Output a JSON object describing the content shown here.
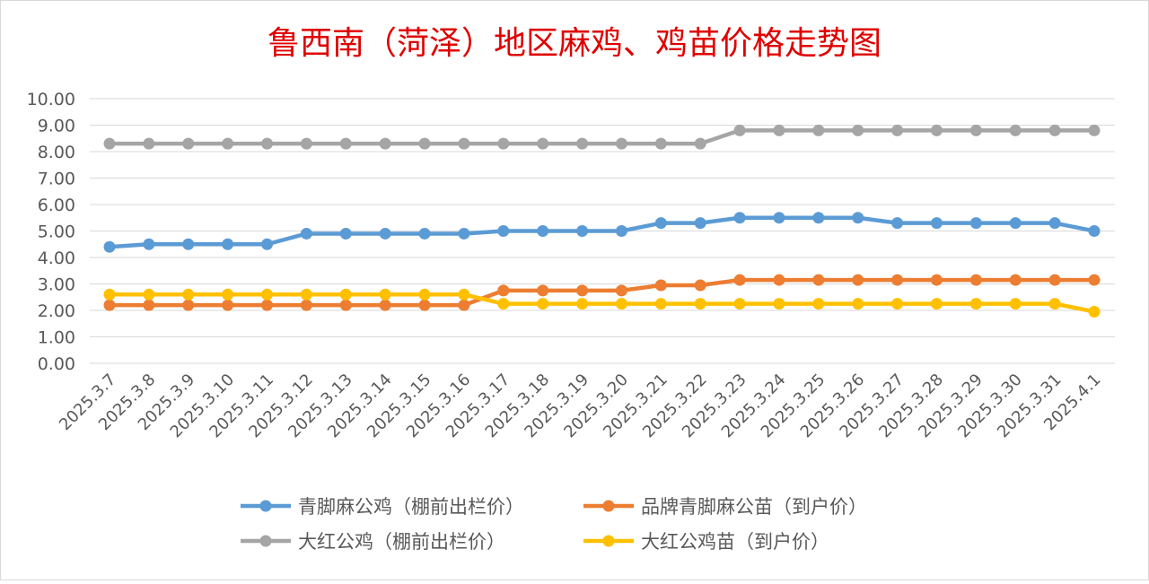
{
  "chart_data": {
    "type": "line",
    "title": "鲁西南（菏泽）地区麻鸡、鸡苗价格走势图",
    "xlabel": "",
    "ylabel": "",
    "ylim": [
      0,
      10
    ],
    "yticks": [
      "0.00",
      "1.00",
      "2.00",
      "3.00",
      "4.00",
      "5.00",
      "6.00",
      "7.00",
      "8.00",
      "9.00",
      "10.00"
    ],
    "grid": true,
    "legend_position": "bottom",
    "categories": [
      "2025.3.7",
      "2025.3.8",
      "2025.3.9",
      "2025.3.10",
      "2025.3.11",
      "2025.3.12",
      "2025.3.13",
      "2025.3.14",
      "2025.3.15",
      "2025.3.16",
      "2025.3.17",
      "2025.3.18",
      "2025.3.19",
      "2025.3.20",
      "2025.3.21",
      "2025.3.22",
      "2025.3.23",
      "2025.3.24",
      "2025.3.25",
      "2025.3.26",
      "2025.3.27",
      "2025.3.28",
      "2025.3.29",
      "2025.3.30",
      "2025.3.31",
      "2025.4.1"
    ],
    "series": [
      {
        "name": "青脚麻公鸡（棚前出栏价）",
        "color": "#5b9bd5",
        "values": [
          4.4,
          4.5,
          4.5,
          4.5,
          4.5,
          4.9,
          4.9,
          4.9,
          4.9,
          4.9,
          5.0,
          5.0,
          5.0,
          5.0,
          5.3,
          5.3,
          5.5,
          5.5,
          5.5,
          5.5,
          5.3,
          5.3,
          5.3,
          5.3,
          5.3,
          5.0
        ]
      },
      {
        "name": "品牌青脚麻公苗（到户价）",
        "color": "#ed7d31",
        "values": [
          2.2,
          2.2,
          2.2,
          2.2,
          2.2,
          2.2,
          2.2,
          2.2,
          2.2,
          2.2,
          2.75,
          2.75,
          2.75,
          2.75,
          2.95,
          2.95,
          3.15,
          3.15,
          3.15,
          3.15,
          3.15,
          3.15,
          3.15,
          3.15,
          3.15,
          3.15
        ]
      },
      {
        "name": "大红公鸡（棚前出栏价）",
        "color": "#a5a5a5",
        "values": [
          8.3,
          8.3,
          8.3,
          8.3,
          8.3,
          8.3,
          8.3,
          8.3,
          8.3,
          8.3,
          8.3,
          8.3,
          8.3,
          8.3,
          8.3,
          8.3,
          8.8,
          8.8,
          8.8,
          8.8,
          8.8,
          8.8,
          8.8,
          8.8,
          8.8,
          8.8
        ]
      },
      {
        "name": "大红公鸡苗（到户价）",
        "color": "#ffc000",
        "values": [
          2.6,
          2.6,
          2.6,
          2.6,
          2.6,
          2.6,
          2.6,
          2.6,
          2.6,
          2.6,
          2.25,
          2.25,
          2.25,
          2.25,
          2.25,
          2.25,
          2.25,
          2.25,
          2.25,
          2.25,
          2.25,
          2.25,
          2.25,
          2.25,
          2.25,
          1.95
        ]
      }
    ],
    "legend_order": [
      0,
      1,
      2,
      3
    ],
    "colors": {
      "title": "#e00000",
      "grid": "#d9d9d9",
      "text": "#595959"
    }
  }
}
